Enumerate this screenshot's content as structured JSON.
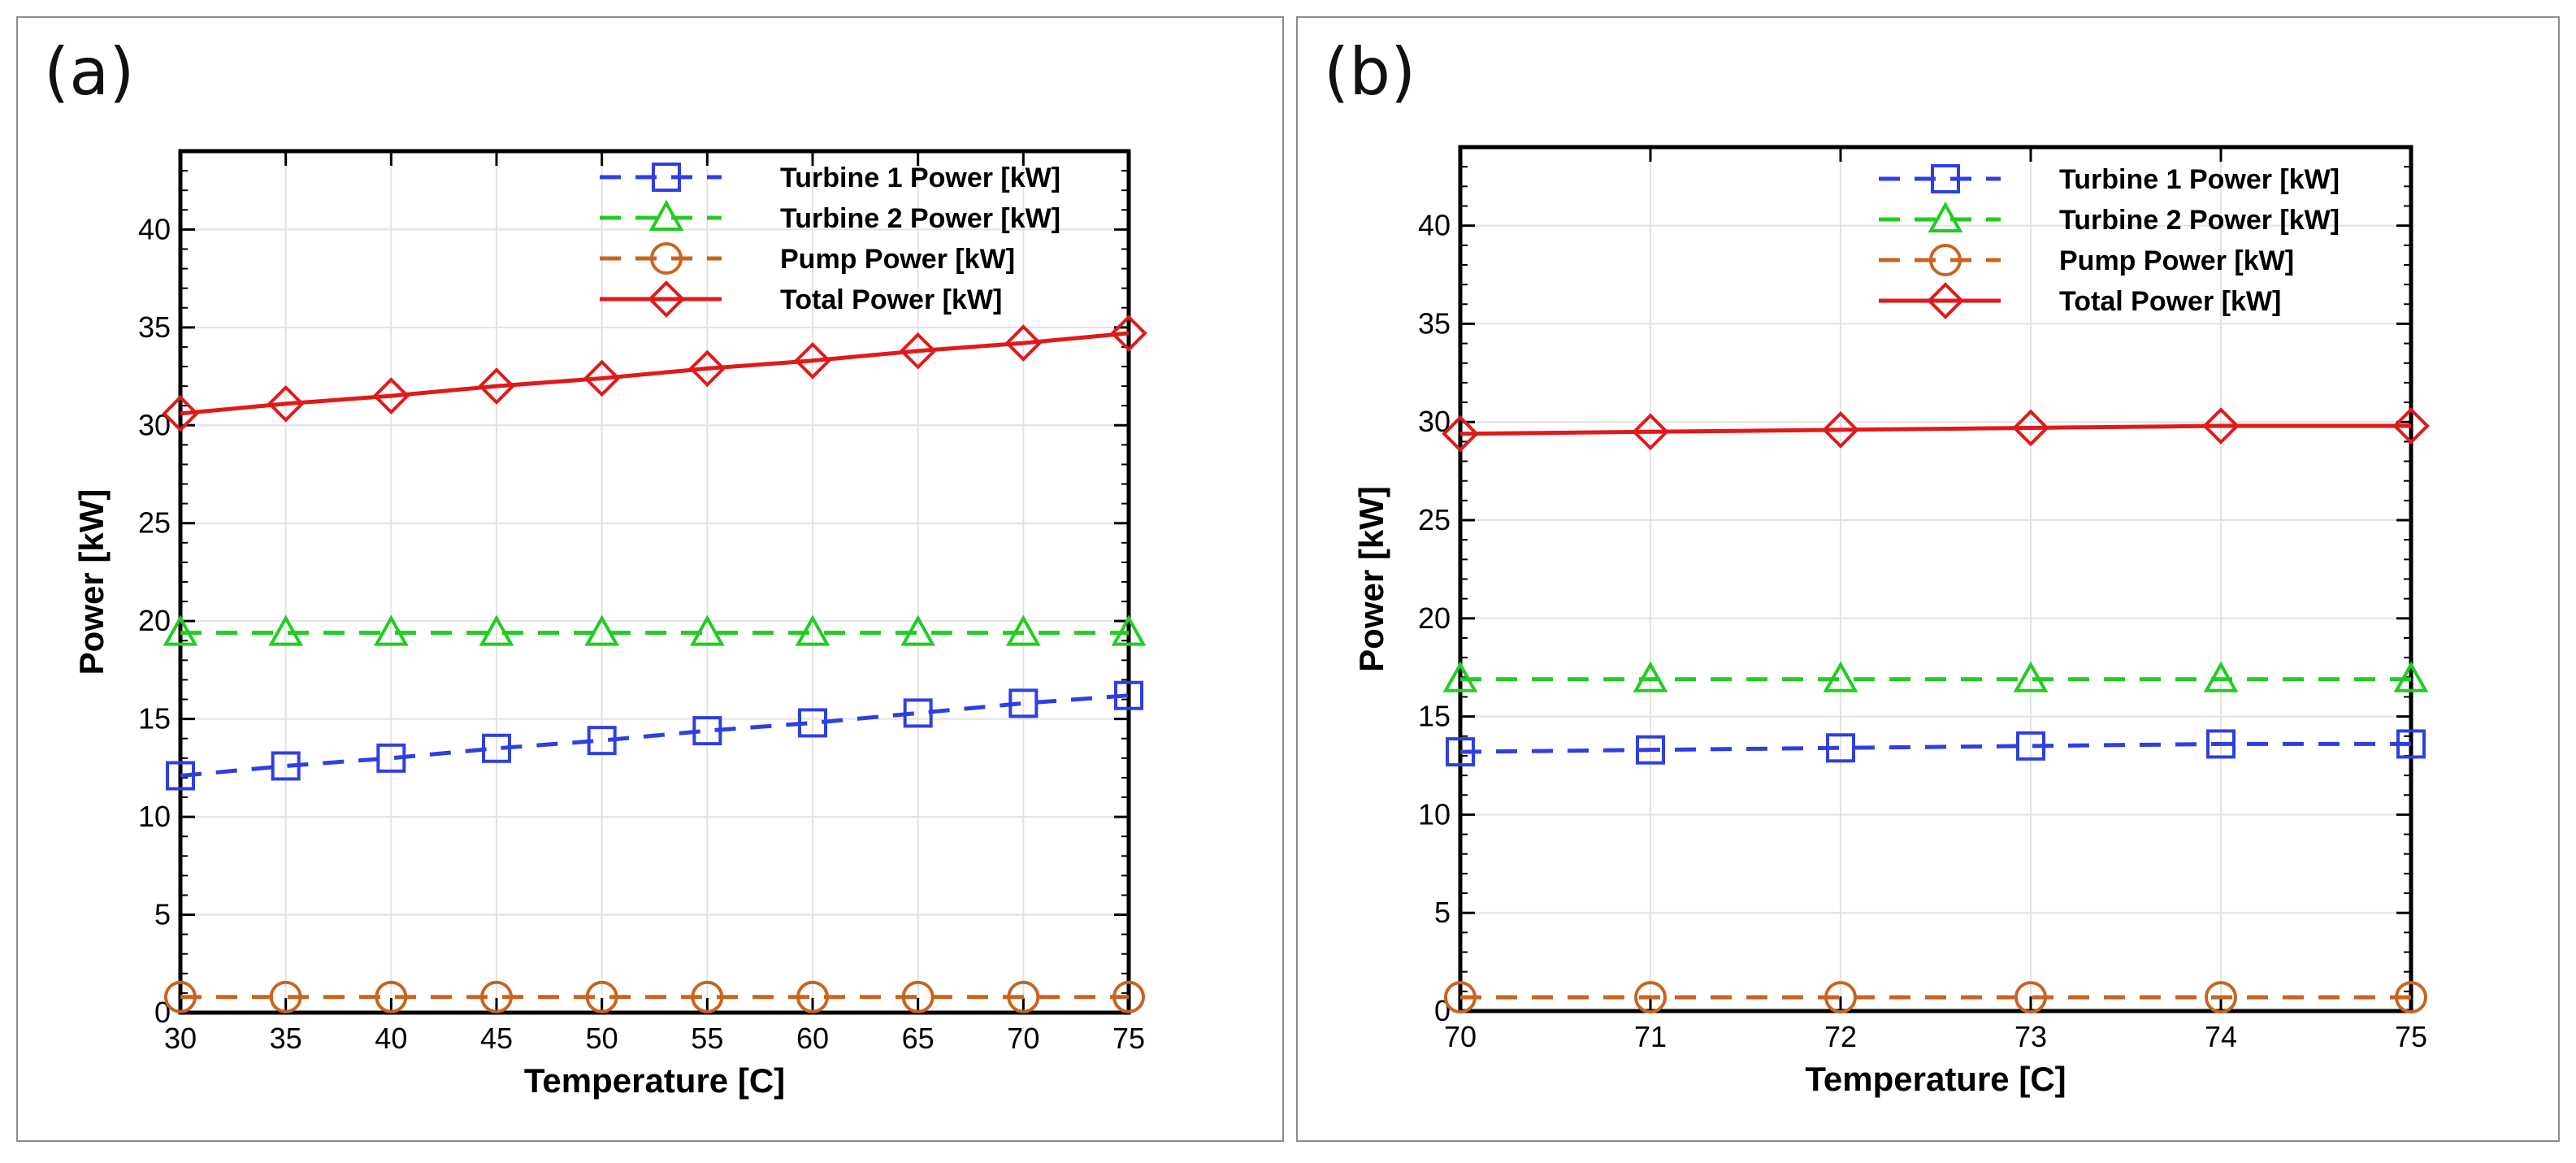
{
  "chart_data": [
    {
      "type": "line",
      "panel_label": "(a)",
      "xlabel": "Temperature [C]",
      "ylabel": "Power [kW]",
      "xlim": [
        30,
        75
      ],
      "ylim": [
        0,
        44
      ],
      "xticks": [
        30,
        35,
        40,
        45,
        50,
        55,
        60,
        65,
        70,
        75
      ],
      "yticks": [
        0,
        5,
        10,
        15,
        20,
        25,
        30,
        35,
        40
      ],
      "grid": true,
      "legend_position": "top-right",
      "x": [
        30,
        35,
        40,
        45,
        50,
        55,
        60,
        65,
        70,
        75
      ],
      "series": [
        {
          "name": "Turbine 1 Power [kW]",
          "color": "#2f3fe0",
          "marker": "square",
          "dash": "dashed",
          "values": [
            12.1,
            12.6,
            13.0,
            13.5,
            13.9,
            14.4,
            14.8,
            15.3,
            15.8,
            16.2
          ]
        },
        {
          "name": "Turbine 2 Power [kW]",
          "color": "#22cc22",
          "marker": "triangle",
          "dash": "dashed",
          "values": [
            19.4,
            19.4,
            19.4,
            19.4,
            19.4,
            19.4,
            19.4,
            19.4,
            19.4,
            19.4
          ]
        },
        {
          "name": "Pump Power [kW]",
          "color": "#c8641e",
          "marker": "circle",
          "dash": "dashed",
          "values": [
            0.8,
            0.8,
            0.8,
            0.8,
            0.8,
            0.8,
            0.8,
            0.8,
            0.8,
            0.8
          ]
        },
        {
          "name": "Total Power [kW]",
          "color": "#e01a1a",
          "marker": "diamond",
          "dash": "solid",
          "values": [
            30.6,
            31.1,
            31.5,
            32.0,
            32.4,
            32.9,
            33.3,
            33.8,
            34.2,
            34.7
          ]
        }
      ]
    },
    {
      "type": "line",
      "panel_label": "(b)",
      "xlabel": "Temperature [C]",
      "ylabel": "Power [kW]",
      "xlim": [
        70,
        75
      ],
      "ylim": [
        0,
        44
      ],
      "xticks": [
        70,
        71,
        72,
        73,
        74,
        75
      ],
      "yticks": [
        0,
        5,
        10,
        15,
        20,
        25,
        30,
        35,
        40
      ],
      "grid": true,
      "legend_position": "top-right",
      "x": [
        70,
        71,
        72,
        73,
        74,
        75
      ],
      "series": [
        {
          "name": "Turbine 1 Power [kW]",
          "color": "#2f3fe0",
          "marker": "square",
          "dash": "dashed",
          "values": [
            13.2,
            13.3,
            13.4,
            13.5,
            13.6,
            13.6
          ]
        },
        {
          "name": "Turbine 2 Power [kW]",
          "color": "#22cc22",
          "marker": "triangle",
          "dash": "dashed",
          "values": [
            16.9,
            16.9,
            16.9,
            16.9,
            16.9,
            16.9
          ]
        },
        {
          "name": "Pump Power [kW]",
          "color": "#c8641e",
          "marker": "circle",
          "dash": "dashed",
          "values": [
            0.7,
            0.7,
            0.7,
            0.7,
            0.7,
            0.7
          ]
        },
        {
          "name": "Total Power [kW]",
          "color": "#e01a1a",
          "marker": "diamond",
          "dash": "solid",
          "values": [
            29.4,
            29.5,
            29.6,
            29.7,
            29.8,
            29.8
          ]
        }
      ]
    }
  ]
}
